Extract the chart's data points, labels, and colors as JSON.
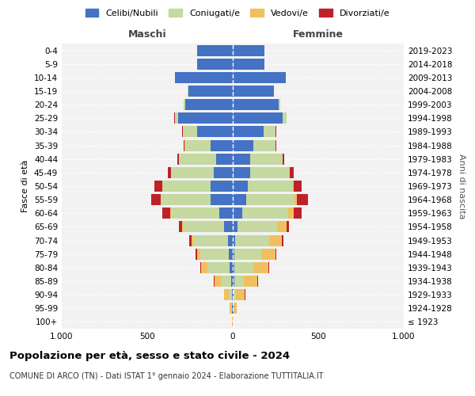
{
  "title": "Popolazione per età, sesso e stato civile - 2024",
  "subtitle": "COMUNE DI ARCO (TN) - Dati ISTAT 1° gennaio 2024 - Elaborazione TUTTITALIA.IT",
  "left_label": "Maschi",
  "right_label": "Femmine",
  "ylabel": "Fasce di età",
  "ylabel2": "Anni di nascita",
  "age_groups": [
    "100+",
    "95-99",
    "90-94",
    "85-89",
    "80-84",
    "75-79",
    "70-74",
    "65-69",
    "60-64",
    "55-59",
    "50-54",
    "45-49",
    "40-44",
    "35-39",
    "30-34",
    "25-29",
    "20-24",
    "15-19",
    "10-14",
    "5-9",
    "0-4"
  ],
  "birth_years": [
    "≤ 1923",
    "1924-1928",
    "1929-1933",
    "1934-1938",
    "1939-1943",
    "1944-1948",
    "1949-1953",
    "1954-1958",
    "1959-1963",
    "1964-1968",
    "1969-1973",
    "1974-1978",
    "1979-1983",
    "1984-1988",
    "1989-1993",
    "1994-1998",
    "1999-2003",
    "2004-2008",
    "2009-2013",
    "2014-2018",
    "2019-2023"
  ],
  "colors": {
    "celibi": "#4472C4",
    "coniugati": "#C5D9A0",
    "vedovi": "#F0C060",
    "divorziati": "#C0202A"
  },
  "legend": [
    "Celibi/Nubili",
    "Coniugati/e",
    "Vedovi/e",
    "Divorziati/e"
  ],
  "males": {
    "celibi": [
      2,
      3,
      5,
      8,
      20,
      25,
      30,
      50,
      80,
      130,
      130,
      110,
      95,
      130,
      210,
      320,
      280,
      260,
      340,
      210,
      210
    ],
    "coniugati": [
      0,
      5,
      20,
      60,
      130,
      165,
      200,
      240,
      280,
      290,
      280,
      250,
      220,
      150,
      80,
      20,
      5,
      2,
      0,
      0,
      0
    ],
    "vedovi": [
      2,
      10,
      25,
      40,
      35,
      20,
      10,
      8,
      5,
      3,
      2,
      1,
      1,
      1,
      0,
      0,
      0,
      0,
      0,
      0,
      0
    ],
    "divorziati": [
      0,
      0,
      2,
      5,
      5,
      8,
      15,
      15,
      45,
      55,
      45,
      20,
      10,
      5,
      5,
      2,
      0,
      0,
      0,
      0,
      0
    ]
  },
  "females": {
    "nubili": [
      2,
      3,
      5,
      8,
      10,
      10,
      15,
      30,
      55,
      80,
      90,
      100,
      100,
      120,
      180,
      290,
      270,
      240,
      310,
      185,
      185
    ],
    "coniugate": [
      0,
      3,
      15,
      55,
      110,
      155,
      200,
      230,
      270,
      280,
      260,
      230,
      190,
      130,
      70,
      25,
      8,
      3,
      0,
      0,
      0
    ],
    "vedove": [
      3,
      18,
      50,
      80,
      90,
      85,
      70,
      55,
      30,
      15,
      8,
      3,
      2,
      1,
      0,
      0,
      0,
      0,
      0,
      0,
      0
    ],
    "divorziate": [
      0,
      0,
      2,
      3,
      5,
      5,
      10,
      15,
      50,
      65,
      45,
      25,
      10,
      5,
      3,
      2,
      0,
      0,
      0,
      0,
      0
    ]
  }
}
